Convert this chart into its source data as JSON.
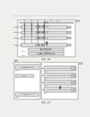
{
  "bg_color": "#f0f0ec",
  "header_text": "Patent Application Publication    Aug. 21, 2014   Sheet 16 of    US 2014/0236984 A1",
  "fig1_label": "FIG. 16",
  "fig2_label": "FIG. 17"
}
